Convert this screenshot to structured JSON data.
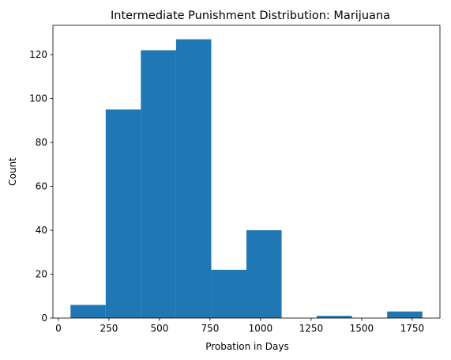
{
  "chart_data": {
    "type": "bar",
    "histogram": true,
    "title": "Intermediate Punishment Distribution: Marijuana",
    "xlabel": "Probation in Days",
    "ylabel": "Count",
    "bins": [
      {
        "x0": 60,
        "x1": 234,
        "value": 6
      },
      {
        "x0": 234,
        "x1": 408,
        "value": 95
      },
      {
        "x0": 408,
        "x1": 582,
        "value": 122
      },
      {
        "x0": 582,
        "x1": 756,
        "value": 127
      },
      {
        "x0": 756,
        "x1": 930,
        "value": 22
      },
      {
        "x0": 930,
        "x1": 1104,
        "value": 40
      },
      {
        "x0": 1104,
        "x1": 1278,
        "value": 0
      },
      {
        "x0": 1278,
        "x1": 1452,
        "value": 1
      },
      {
        "x0": 1452,
        "x1": 1626,
        "value": 0
      },
      {
        "x0": 1626,
        "x1": 1800,
        "value": 3
      }
    ],
    "xlim": [
      -27,
      1887
    ],
    "ylim": [
      0,
      133.35
    ],
    "xticks": [
      0,
      250,
      500,
      750,
      1000,
      1250,
      1500,
      1750
    ],
    "yticks": [
      0,
      20,
      40,
      60,
      80,
      100,
      120
    ],
    "bar_color": "#1f77b4",
    "grid": false
  }
}
